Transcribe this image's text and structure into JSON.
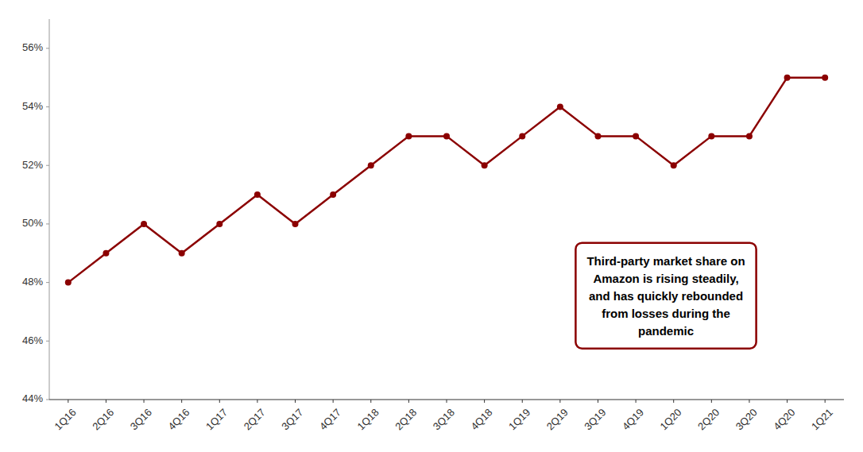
{
  "chart_data": {
    "type": "line",
    "categories": [
      "1Q16",
      "2Q16",
      "3Q16",
      "4Q16",
      "1Q17",
      "2Q17",
      "3Q17",
      "4Q17",
      "1Q18",
      "2Q18",
      "3Q18",
      "4Q18",
      "1Q19",
      "2Q19",
      "3Q19",
      "4Q19",
      "1Q20",
      "2Q20",
      "3Q20",
      "4Q20",
      "1Q21"
    ],
    "values": [
      48,
      49,
      50,
      49,
      50,
      51,
      50,
      51,
      52,
      53,
      53,
      52,
      53,
      54,
      53,
      53,
      52,
      53,
      53,
      55,
      55
    ],
    "color": "#8B0000",
    "marker": "circle",
    "ylim": [
      44,
      57
    ],
    "yticks": [
      {
        "value": 44,
        "label": "44%"
      },
      {
        "value": 46,
        "label": "46%"
      },
      {
        "value": 48,
        "label": "48%"
      },
      {
        "value": 50,
        "label": "50%"
      },
      {
        "value": 52,
        "label": "52%"
      },
      {
        "value": 54,
        "label": "54%"
      },
      {
        "value": 56,
        "label": "56%"
      }
    ],
    "grid": false,
    "annotation": "Third-party market share on\nAmazon is rising steadily,\nand has quickly rebounded\nfrom losses during the\npandemic"
  }
}
